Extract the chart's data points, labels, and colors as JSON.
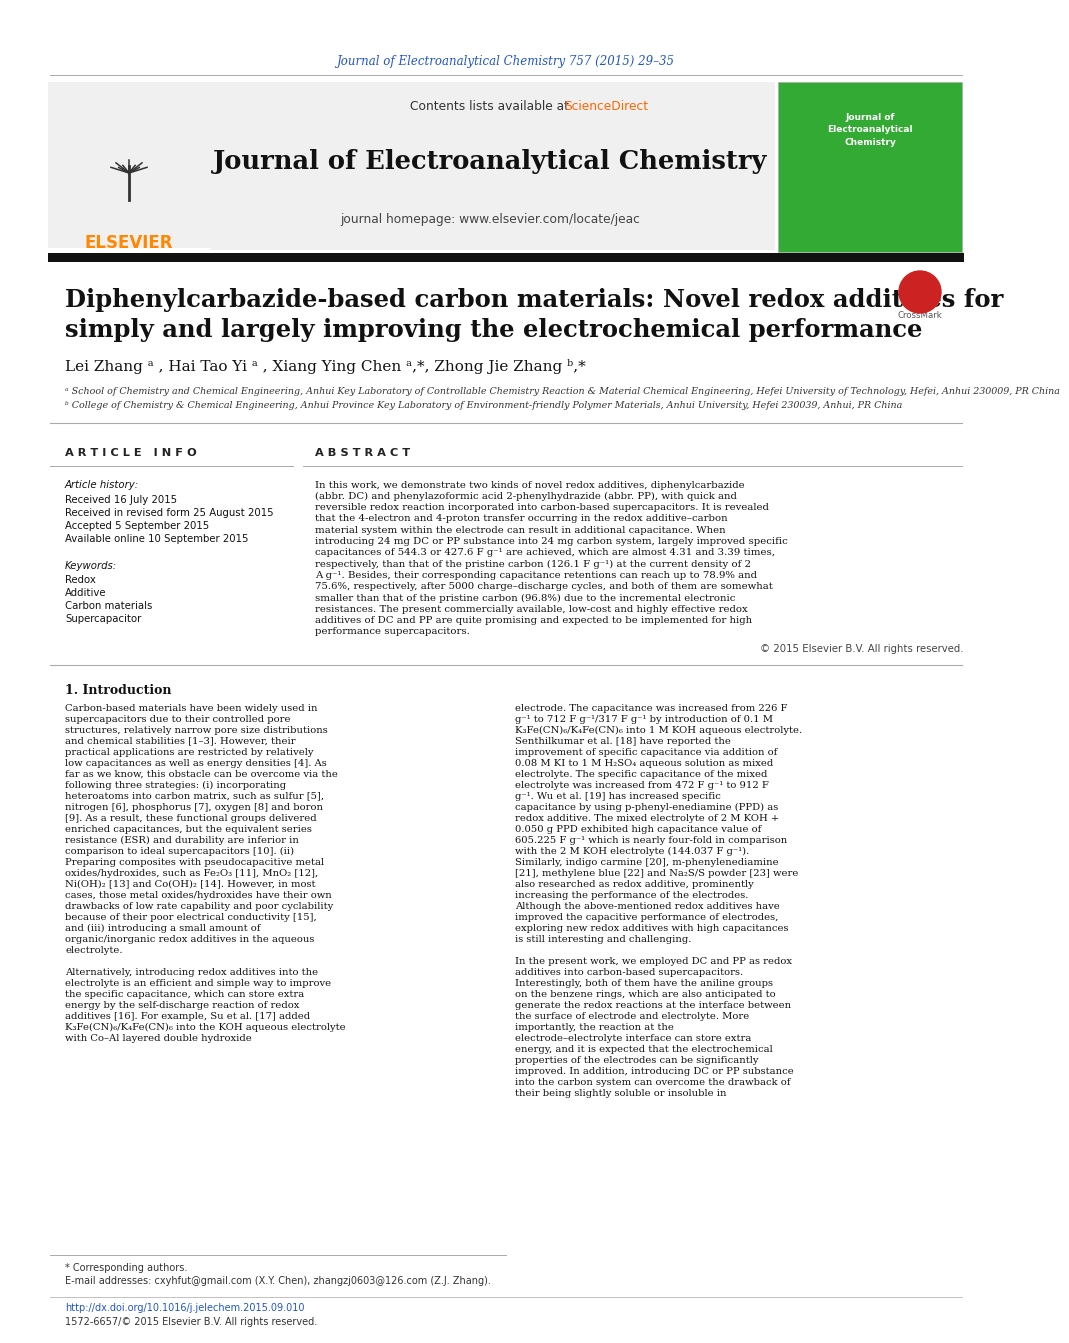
{
  "page_title_link": "Journal of Electroanalytical Chemistry 757 (2015) 29–35",
  "journal_name": "Journal of Electroanalytical Chemistry",
  "journal_homepage": "journal homepage: www.elsevier.com/locate/jeac",
  "contents_line": "Contents lists available at",
  "sciencedirect_text": "ScienceDirect",
  "elsevier_text": "ELSEVIER",
  "article_title_line1": "Diphenylcarbazide-based carbon materials: Novel redox additives for",
  "article_title_line2": "simply and largely improving the electrochemical performance",
  "authors": "Lei Zhang ᵃ , Hai Tao Yi ᵃ , Xiang Ying Chen ᵃ,*, Zhong Jie Zhang ᵇ,*",
  "affiliation_a": "ᵃ School of Chemistry and Chemical Engineering, Anhui Key Laboratory of Controllable Chemistry Reaction & Material Chemical Engineering, Hefei University of Technology, Hefei, Anhui 230009, PR China",
  "affiliation_b": "ᵇ College of Chemistry & Chemical Engineering, Anhui Province Key Laboratory of Environment-friendly Polymer Materials, Anhui University, Hefei 230039, Anhui, PR China",
  "article_info_header": "A R T I C L E   I N F O",
  "abstract_header": "A B S T R A C T",
  "article_history_label": "Article history:",
  "received": "Received 16 July 2015",
  "revised": "Received in revised form 25 August 2015",
  "accepted": "Accepted 5 September 2015",
  "available": "Available online 10 September 2015",
  "keywords_label": "Keywords:",
  "keywords": [
    "Redox",
    "Additive",
    "Carbon materials",
    "Supercapacitor"
  ],
  "abstract_text": "In this work, we demonstrate two kinds of novel redox additives, diphenylcarbazide (abbr. DC) and phenylazoformic acid 2-phenylhydrazide (abbr. PP), with quick and reversible redox reaction incorporated into carbon-based supercapacitors. It is revealed that the 4-electron and 4-proton transfer occurring in the redox additive–carbon material system within the electrode can result in additional capacitance. When introducing 24 mg DC or PP substance into 24 mg carbon system, largely improved specific capacitances of 544.3 or 427.6 F g⁻¹ are achieved, which are almost 4.31 and 3.39 times, respectively, than that of the pristine carbon (126.1 F g⁻¹) at the current density of 2 A g⁻¹. Besides, their corresponding capacitance retentions can reach up to 78.9% and 75.6%, respectively, after 5000 charge–discharge cycles, and both of them are somewhat smaller than that of the pristine carbon (96.8%) due to the incremental electronic resistances. The present commercially available, low-cost and highly effective redox additives of DC and PP are quite promising and expected to be implemented for high performance supercapacitors.",
  "copyright": "© 2015 Elsevier B.V. All rights reserved.",
  "intro_header": "1. Introduction",
  "intro_col1": "Carbon-based materials have been widely used in supercapacitors due to their controlled pore structures, relatively narrow pore size distributions and chemical stabilities [1–3]. However, their practical applications are restricted by relatively low capacitances as well as energy densities [4]. As far as we know, this obstacle can be overcome via the following three strategies: (i) incorporating heteroatoms into carbon matrix, such as sulfur [5], nitrogen [6], phosphorus [7], oxygen [8] and boron [9]. As a result, these functional groups delivered enriched capacitances, but the equivalent series resistance (ESR) and durability are inferior in comparison to ideal supercapacitors [10]. (ii) Preparing composites with pseudocapacitive metal oxides/hydroxides, such as Fe₂O₃ [11], MnO₂ [12], Ni(OH)₂ [13] and Co(OH)₂ [14]. However, in most cases, those metal oxides/hydroxides have their own drawbacks of low rate capability and poor cyclability because of their poor electrical conductivity [15], and (iii) introducing a small amount of organic/inorganic redox additives in the aqueous electrolyte.\n\nAlternatively, introducing redox additives into the electrolyte is an efficient and simple way to improve the specific capacitance, which can store extra energy by the self-discharge reaction of redox additives [16]. For example, Su et al. [17] added K₃Fe(CN)₆/K₄Fe(CN)₆ into the KOH aqueous electrolyte with Co–Al layered double hydroxide",
  "intro_col2": "electrode. The capacitance was increased from 226 F g⁻¹ to 712 F g⁻¹/317 F g⁻¹ by introduction of 0.1 M K₃Fe(CN)₆/K₄Fe(CN)₆ into 1 M KOH aqueous electrolyte. Senthilkumar et al. [18] have reported the improvement of specific capacitance via addition of 0.08 M KI to 1 M H₂SO₄ aqueous solution as mixed electrolyte. The specific capacitance of the mixed electrolyte was increased from 472 F g⁻¹ to 912 F g⁻¹. Wu et al. [19] has increased specific capacitance by using p-phenyl-enediamine (PPD) as redox additive. The mixed electrolyte of 2 M KOH + 0.050 g PPD exhibited high capacitance value of 605.225 F g⁻¹ which is nearly four-fold in comparison with the 2 M KOH electrolyte (144.037 F g⁻¹). Similarly, indigo carmine [20], m-phenylenediamine [21], methylene blue [22] and Na₂S/S powder [23] were also researched as redox additive, prominently increasing the performance of the electrodes. Although the above-mentioned redox additives have improved the capacitive performance of electrodes, exploring new redox additives with high capacitances is still interesting and challenging.\n\nIn the present work, we employed DC and PP as redox additives into carbon-based supercapacitors. Interestingly, both of them have the aniline groups on the benzene rings, which are also anticipated to generate the redox reactions at the interface between the surface of electrode and electrolyte. More importantly, the reaction at the electrode–electrolyte interface can store extra energy, and it is expected that the electrochemical properties of the electrodes can be significantly improved. In addition, introducing DC or PP substance into the carbon system can overcome the drawback of their being slightly soluble or insoluble in",
  "footer_line1": "* Corresponding authors.",
  "footer_line2": "E-mail addresses: cxyhfut@gmail.com (X.Y. Chen), zhangzj0603@126.com (Z.J. Zhang).",
  "footer_doi": "http://dx.doi.org/10.1016/j.jelechem.2015.09.010",
  "footer_issn": "1572-6657/© 2015 Elsevier B.V. All rights reserved.",
  "bg_color": "#ffffff",
  "header_bg": "#f0f0f0",
  "blue_link_color": "#2255cc",
  "sciencedirect_color": "#ff6600",
  "elsevier_orange": "#ff8800",
  "title_color": "#000000",
  "body_text_color": "#000000",
  "header_bar_color": "#111111",
  "green_bar_color": "#44bb44"
}
